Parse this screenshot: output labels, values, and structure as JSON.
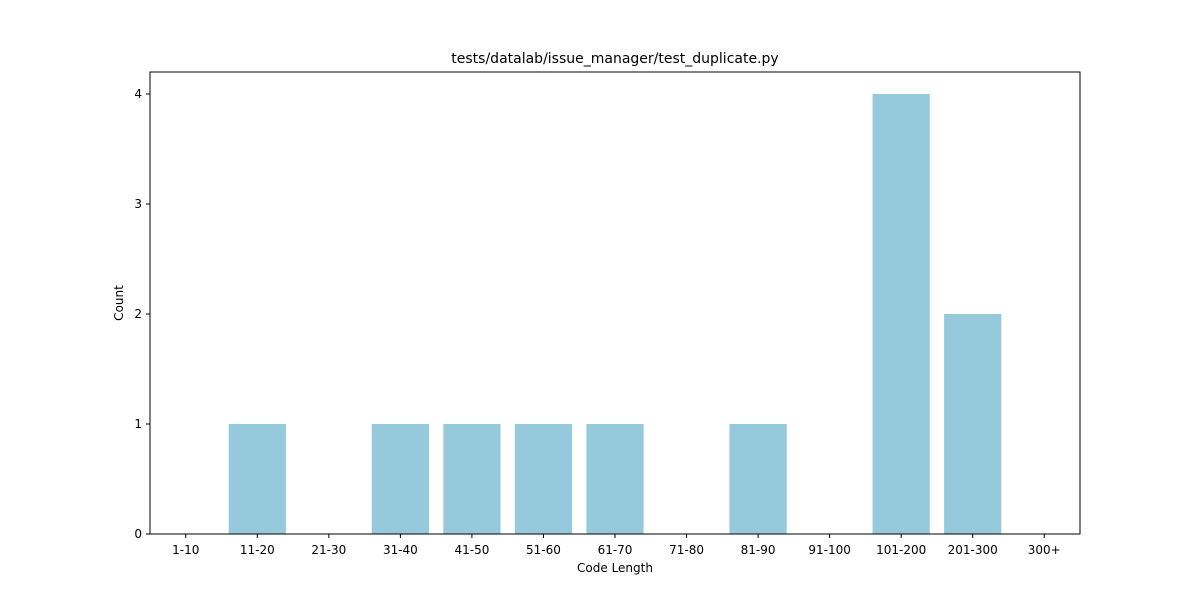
{
  "chart_data": {
    "type": "bar",
    "title": "tests/datalab/issue_manager/test_duplicate.py",
    "xlabel": "Code Length",
    "ylabel": "Count",
    "categories": [
      "1-10",
      "11-20",
      "21-30",
      "31-40",
      "41-50",
      "51-60",
      "61-70",
      "71-80",
      "81-90",
      "91-100",
      "101-200",
      "201-300",
      "300+"
    ],
    "values": [
      0,
      1,
      0,
      1,
      1,
      1,
      1,
      0,
      1,
      0,
      4,
      2,
      0
    ],
    "yticks": [
      0,
      1,
      2,
      3,
      4
    ],
    "ylim": [
      0,
      4.2
    ],
    "bar_color": "#96c9dc",
    "grid": false,
    "legend": "none"
  }
}
